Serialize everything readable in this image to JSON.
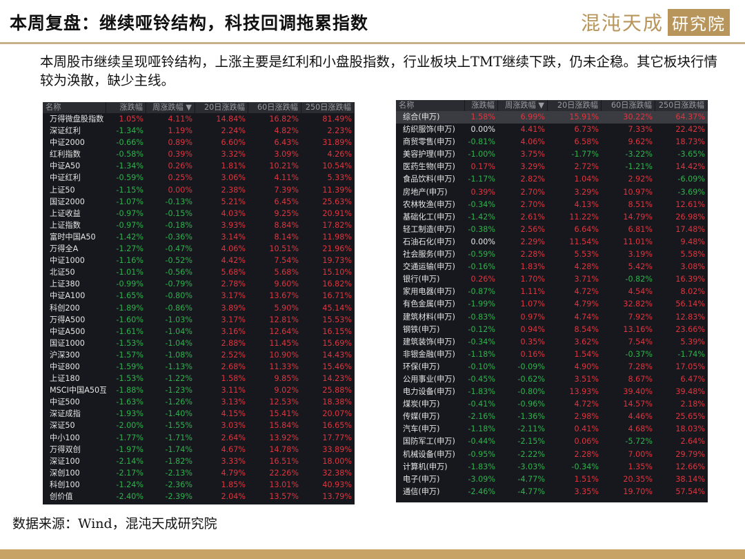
{
  "header": {
    "title": "本周复盘：继续哑铃结构，科技回调拖累指数",
    "logo_text": "混沌天成",
    "logo_badge": "研究院"
  },
  "summary": "本周股市继续呈现哑铃结构，上涨主要是红利和小盘股指数，行业板块上TMT继续下跌，仍未企稳。其它板块行情较为涣散，缺少主线。",
  "source": "数据来源：Wind，混沌天成研究院",
  "colors": {
    "up": "#e0353f",
    "down": "#2fb34d",
    "flat": "#e6e6e6",
    "accent": "#b8955a"
  },
  "index_table": {
    "columns": [
      "名称",
      "涨跌幅",
      "周涨跌幅 ▼",
      "20日涨跌幅",
      "60日涨跌幅",
      "250日涨跌幅"
    ],
    "sort_column": "周涨跌幅",
    "zero_color": "up",
    "rows": [
      [
        "万得微盘股指数",
        "1.05%",
        "4.11%",
        "14.84%",
        "16.82%",
        "81.49%"
      ],
      [
        "深证红利",
        "-1.34%",
        "1.19%",
        "2.24%",
        "4.82%",
        "2.23%"
      ],
      [
        "中证2000",
        "-0.66%",
        "0.89%",
        "6.60%",
        "6.43%",
        "31.89%"
      ],
      [
        "红利指数",
        "-0.58%",
        "0.39%",
        "3.32%",
        "3.09%",
        "4.26%"
      ],
      [
        "中证A50",
        "-1.34%",
        "0.26%",
        "1.81%",
        "10.21%",
        "10.54%"
      ],
      [
        "中证红利",
        "-0.59%",
        "0.25%",
        "3.06%",
        "4.11%",
        "5.33%"
      ],
      [
        "上证50",
        "-1.15%",
        "0.00%",
        "2.38%",
        "7.39%",
        "11.39%"
      ],
      [
        "国证2000",
        "-1.07%",
        "-0.13%",
        "5.21%",
        "6.45%",
        "25.63%"
      ],
      [
        "上证收益",
        "-0.97%",
        "-0.15%",
        "4.03%",
        "9.25%",
        "20.91%"
      ],
      [
        "上证指数",
        "-0.97%",
        "-0.18%",
        "3.93%",
        "8.84%",
        "17.82%"
      ],
      [
        "富时中国A50",
        "-1.42%",
        "-0.36%",
        "3.14%",
        "8.14%",
        "11.98%"
      ],
      [
        "万得全A",
        "-1.27%",
        "-0.47%",
        "4.06%",
        "10.51%",
        "21.96%"
      ],
      [
        "中证1000",
        "-1.16%",
        "-0.52%",
        "4.42%",
        "7.54%",
        "19.73%"
      ],
      [
        "北证50",
        "-1.01%",
        "-0.56%",
        "5.68%",
        "5.68%",
        "15.10%"
      ],
      [
        "上证380",
        "-0.99%",
        "-0.79%",
        "2.78%",
        "9.60%",
        "16.82%"
      ],
      [
        "中证A100",
        "-1.65%",
        "-0.80%",
        "3.17%",
        "13.67%",
        "16.71%"
      ],
      [
        "科创200",
        "-1.89%",
        "-0.86%",
        "3.89%",
        "5.90%",
        "45.14%"
      ],
      [
        "万得A500",
        "-1.60%",
        "-1.03%",
        "3.17%",
        "12.81%",
        "15.53%"
      ],
      [
        "中证A500",
        "-1.61%",
        "-1.04%",
        "3.16%",
        "12.64%",
        "16.15%"
      ],
      [
        "国证1000",
        "-1.53%",
        "-1.04%",
        "2.88%",
        "11.45%",
        "15.69%"
      ],
      [
        "沪深300",
        "-1.57%",
        "-1.08%",
        "2.52%",
        "10.90%",
        "14.43%"
      ],
      [
        "中证800",
        "-1.59%",
        "-1.13%",
        "2.68%",
        "11.33%",
        "15.46%"
      ],
      [
        "上证180",
        "-1.53%",
        "-1.22%",
        "1.58%",
        "9.85%",
        "14.23%"
      ],
      [
        "MSCI中国A50互I",
        "-1.88%",
        "-1.23%",
        "3.11%",
        "9.02%",
        "25.88%"
      ],
      [
        "中证500",
        "-1.63%",
        "-1.26%",
        "3.13%",
        "12.53%",
        "18.38%"
      ],
      [
        "深证成指",
        "-1.93%",
        "-1.40%",
        "4.15%",
        "15.41%",
        "20.07%"
      ],
      [
        "深证50",
        "-2.00%",
        "-1.55%",
        "3.03%",
        "15.84%",
        "16.65%"
      ],
      [
        "中小100",
        "-1.77%",
        "-1.71%",
        "2.64%",
        "13.92%",
        "17.77%"
      ],
      [
        "万得双创",
        "-1.97%",
        "-1.74%",
        "4.67%",
        "14.78%",
        "33.89%"
      ],
      [
        "深证100",
        "-2.14%",
        "-1.82%",
        "3.33%",
        "16.51%",
        "18.00%"
      ],
      [
        "深创100",
        "-2.17%",
        "-2.13%",
        "4.79%",
        "22.26%",
        "32.38%"
      ],
      [
        "科创100",
        "-1.24%",
        "-2.36%",
        "1.85%",
        "13.01%",
        "40.93%"
      ],
      [
        "创价值",
        "-2.40%",
        "-2.39%",
        "2.04%",
        "13.57%",
        "13.79%"
      ]
    ]
  },
  "industry_table": {
    "columns": [
      "名称",
      "涨跌幅",
      "周涨跌幅 ▼",
      "20日涨跌幅",
      "60日涨跌幅",
      "250日涨跌幅"
    ],
    "sort_column": "周涨跌幅",
    "zero_color": "flat",
    "selected_row": 0,
    "rows": [
      [
        "综合(申万)",
        "1.58%",
        "6.99%",
        "15.91%",
        "30.22%",
        "64.37%"
      ],
      [
        "纺织服饰(申万)",
        "0.00%",
        "4.41%",
        "6.73%",
        "7.33%",
        "22.42%"
      ],
      [
        "商贸零售(申万)",
        "-0.81%",
        "4.06%",
        "6.58%",
        "9.62%",
        "18.73%"
      ],
      [
        "美容护理(申万)",
        "-1.00%",
        "3.75%",
        "-1.77%",
        "-3.22%",
        "-3.65%"
      ],
      [
        "医药生物(申万)",
        "0.17%",
        "3.29%",
        "2.72%",
        "-1.21%",
        "14.42%"
      ],
      [
        "食品饮料(申万)",
        "-1.17%",
        "2.82%",
        "1.04%",
        "2.92%",
        "-6.09%"
      ],
      [
        "房地产(申万)",
        "0.39%",
        "2.70%",
        "3.29%",
        "10.97%",
        "-3.69%"
      ],
      [
        "农林牧渔(申万)",
        "-0.34%",
        "2.70%",
        "4.13%",
        "8.51%",
        "12.61%"
      ],
      [
        "基础化工(申万)",
        "-1.42%",
        "2.61%",
        "11.22%",
        "14.79%",
        "26.98%"
      ],
      [
        "轻工制造(申万)",
        "-0.38%",
        "2.56%",
        "6.64%",
        "6.81%",
        "17.48%"
      ],
      [
        "石油石化(申万)",
        "0.00%",
        "2.29%",
        "11.54%",
        "11.01%",
        "9.48%"
      ],
      [
        "社会服务(申万)",
        "-0.59%",
        "2.28%",
        "5.53%",
        "3.19%",
        "5.58%"
      ],
      [
        "交通运输(申万)",
        "-0.16%",
        "1.83%",
        "4.28%",
        "5.42%",
        "3.08%"
      ],
      [
        "银行(申万)",
        "0.26%",
        "1.70%",
        "3.71%",
        "-0.82%",
        "16.39%"
      ],
      [
        "家用电器(申万)",
        "-0.87%",
        "1.11%",
        "4.72%",
        "4.54%",
        "8.02%"
      ],
      [
        "有色金属(申万)",
        "-1.99%",
        "1.07%",
        "4.79%",
        "32.82%",
        "56.14%"
      ],
      [
        "建筑材料(申万)",
        "-0.83%",
        "0.97%",
        "4.74%",
        "7.92%",
        "12.83%"
      ],
      [
        "钢铁(申万)",
        "-0.12%",
        "0.94%",
        "8.54%",
        "13.16%",
        "23.66%"
      ],
      [
        "建筑装饰(申万)",
        "-0.34%",
        "0.35%",
        "3.62%",
        "7.54%",
        "5.39%"
      ],
      [
        "非银金融(申万)",
        "-1.18%",
        "0.16%",
        "1.54%",
        "-0.37%",
        "-1.74%"
      ],
      [
        "环保(申万)",
        "-0.10%",
        "-0.09%",
        "4.90%",
        "7.28%",
        "17.05%"
      ],
      [
        "公用事业(申万)",
        "-0.45%",
        "-0.62%",
        "3.51%",
        "8.67%",
        "6.47%"
      ],
      [
        "电力设备(申万)",
        "-1.83%",
        "-0.80%",
        "13.93%",
        "39.40%",
        "39.48%"
      ],
      [
        "煤炭(申万)",
        "-0.41%",
        "-0.96%",
        "4.72%",
        "14.57%",
        "2.18%"
      ],
      [
        "传媒(申万)",
        "-2.16%",
        "-1.36%",
        "2.98%",
        "4.46%",
        "25.65%"
      ],
      [
        "汽车(申万)",
        "-1.18%",
        "-2.11%",
        "0.41%",
        "4.68%",
        "18.03%"
      ],
      [
        "国防军工(申万)",
        "-0.44%",
        "-2.15%",
        "0.06%",
        "-5.72%",
        "2.64%"
      ],
      [
        "机械设备(申万)",
        "-0.95%",
        "-2.22%",
        "2.28%",
        "7.00%",
        "29.79%"
      ],
      [
        "计算机(申万)",
        "-1.83%",
        "-3.03%",
        "-0.34%",
        "1.35%",
        "12.66%"
      ],
      [
        "电子(申万)",
        "-3.09%",
        "-4.77%",
        "1.51%",
        "20.35%",
        "38.14%"
      ],
      [
        "通信(申万)",
        "-2.46%",
        "-4.77%",
        "3.35%",
        "19.70%",
        "57.54%"
      ]
    ]
  }
}
